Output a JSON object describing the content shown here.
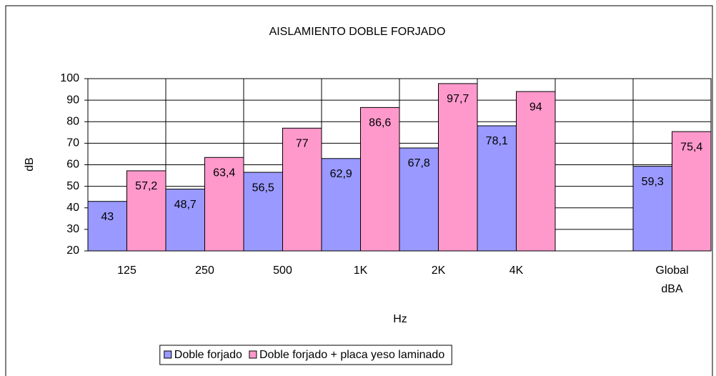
{
  "chart_data": {
    "type": "bar",
    "title": "AISLAMIENTO DOBLE FORJADO",
    "y_label": "dB",
    "x_label": "Hz",
    "categories": [
      "125",
      "250",
      "500",
      "1K",
      "2K",
      "4K",
      null,
      "Global dBA"
    ],
    "series": [
      {
        "name": "Doble forjado",
        "color": "#9999ff",
        "values": [
          43,
          48.7,
          56.5,
          62.9,
          67.8,
          78.1,
          null,
          59.3
        ],
        "value_labels": [
          "43",
          "48,7",
          "56,5",
          "62,9",
          "67,8",
          "78,1",
          null,
          "59,3"
        ]
      },
      {
        "name": "Doble forjado + placa yeso laminado",
        "color": "#ff99cc",
        "values": [
          57.2,
          63.4,
          77,
          86.6,
          97.7,
          94,
          null,
          75.4
        ],
        "value_labels": [
          "57,2",
          "63,4",
          "77",
          "86,6",
          "97,7",
          "94",
          null,
          "75,4"
        ]
      }
    ],
    "ylim": [
      20,
      100
    ],
    "yticks": [
      20,
      30,
      40,
      50,
      60,
      70,
      80,
      90,
      100
    ],
    "grid": true,
    "legend": "bottom"
  }
}
